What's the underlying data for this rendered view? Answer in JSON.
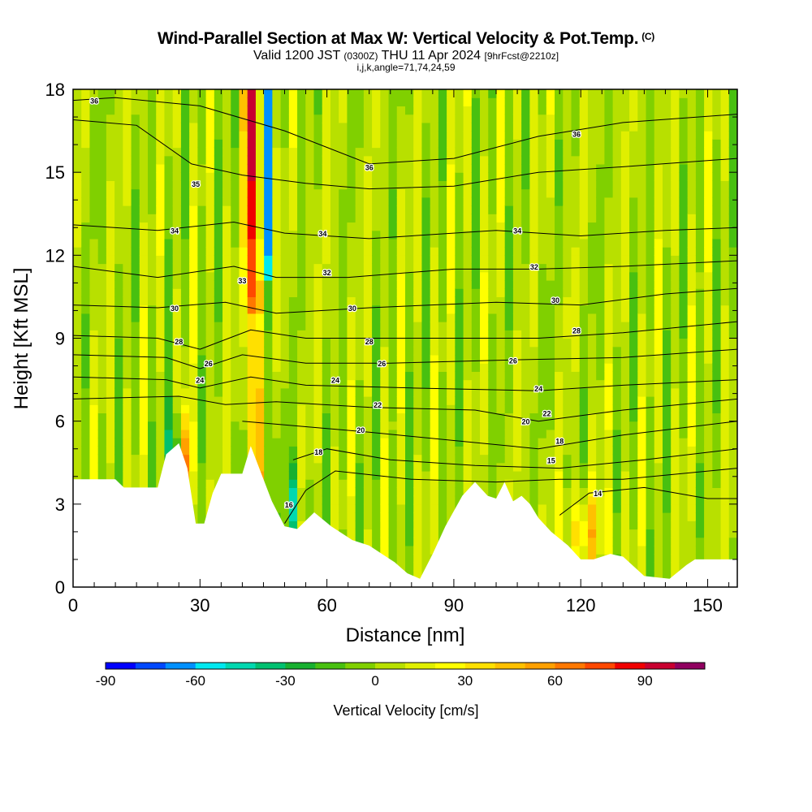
{
  "title": {
    "main": "Wind-Parallel Section at Max W: Vertical Velocity & Pot.Temp.",
    "copyright": "(C)",
    "valid_prefix": "Valid 1200 JST",
    "valid_utc": "(0300Z)",
    "valid_date": "THU 11 Apr 2024",
    "forecast": "[9hrFcst@2210z]",
    "indices": "i,j,k,angle=71,74,24,59"
  },
  "chart_data": {
    "type": "heatmap",
    "xlabel": "Distance [nm]",
    "ylabel": "Height [Kft MSL]",
    "xlim": [
      0,
      157
    ],
    "ylim": [
      0,
      18
    ],
    "x_ticks": [
      0,
      30,
      60,
      90,
      120,
      150
    ],
    "y_ticks": [
      0,
      3,
      6,
      9,
      12,
      15,
      18
    ],
    "x_tick_labels": [
      "0",
      "30",
      "60",
      "90",
      "120",
      "150"
    ],
    "y_tick_labels": [
      "0",
      "3",
      "6",
      "9",
      "12",
      "15",
      "18"
    ],
    "colorbar": {
      "label": "Vertical Velocity [cm/s]",
      "min": -90,
      "max": 110,
      "step": 10,
      "tick_values": [
        -90,
        -60,
        -30,
        0,
        30,
        60,
        90
      ],
      "tick_labels": [
        "-90",
        "-60",
        "-30",
        "0",
        "30",
        "60",
        "90"
      ],
      "colors": [
        "#0000ff",
        "#0048ff",
        "#0090ff",
        "#00e8f0",
        "#00d8b0",
        "#00c070",
        "#18b030",
        "#48c010",
        "#80d000",
        "#b8e000",
        "#e0ef00",
        "#ffff00",
        "#ffe000",
        "#ffc000",
        "#ffa000",
        "#ff7800",
        "#ff4800",
        "#f00000",
        "#c80030",
        "#900060"
      ]
    },
    "terrain_kft": [
      [
        0,
        3.9
      ],
      [
        10,
        3.9
      ],
      [
        12,
        3.6
      ],
      [
        20,
        3.6
      ],
      [
        22,
        4.8
      ],
      [
        25,
        5.2
      ],
      [
        27,
        4.3
      ],
      [
        29,
        2.3
      ],
      [
        31,
        2.3
      ],
      [
        33,
        3.4
      ],
      [
        35,
        4.1
      ],
      [
        40,
        4.1
      ],
      [
        42,
        5.1
      ],
      [
        47,
        3.1
      ],
      [
        50,
        2.2
      ],
      [
        53,
        2.1
      ],
      [
        57,
        2.7
      ],
      [
        61,
        2.2
      ],
      [
        66,
        1.7
      ],
      [
        70,
        1.5
      ],
      [
        73,
        1.2
      ],
      [
        76,
        0.9
      ],
      [
        79,
        0.5
      ],
      [
        82,
        0.3
      ],
      [
        85,
        1.2
      ],
      [
        88,
        2.2
      ],
      [
        92,
        3.3
      ],
      [
        95,
        3.8
      ],
      [
        98,
        3.3
      ],
      [
        100,
        3.2
      ],
      [
        102,
        3.8
      ],
      [
        104,
        3.1
      ],
      [
        106,
        3.3
      ],
      [
        108,
        3.0
      ],
      [
        110,
        2.5
      ],
      [
        113,
        2.0
      ],
      [
        117,
        1.5
      ],
      [
        120,
        1.0
      ],
      [
        123,
        1.0
      ],
      [
        127,
        1.2
      ],
      [
        130,
        1.1
      ],
      [
        135,
        0.4
      ],
      [
        141,
        0.3
      ],
      [
        145,
        0.8
      ],
      [
        147,
        1.0
      ],
      [
        157,
        1.0
      ]
    ],
    "theta_contours": [
      {
        "level": 36,
        "points": [
          [
            0,
            17.6
          ],
          [
            10,
            17.7
          ],
          [
            30,
            17.4
          ],
          [
            50,
            16.5
          ],
          [
            70,
            15.3
          ],
          [
            90,
            15.5
          ],
          [
            110,
            16.3
          ],
          [
            130,
            16.8
          ],
          [
            157,
            17.1
          ]
        ]
      },
      {
        "level": 35,
        "points": [
          [
            0,
            16.9
          ],
          [
            15,
            16.7
          ],
          [
            28,
            15.3
          ],
          [
            40,
            14.9
          ],
          [
            55,
            14.6
          ],
          [
            70,
            14.4
          ],
          [
            90,
            14.5
          ],
          [
            110,
            15.0
          ],
          [
            130,
            15.2
          ],
          [
            157,
            15.5
          ]
        ]
      },
      {
        "level": 34,
        "points": [
          [
            0,
            13.1
          ],
          [
            20,
            12.9
          ],
          [
            38,
            13.2
          ],
          [
            50,
            12.8
          ],
          [
            70,
            12.6
          ],
          [
            100,
            12.9
          ],
          [
            120,
            12.7
          ],
          [
            140,
            12.9
          ],
          [
            157,
            13.0
          ]
        ]
      },
      {
        "level": 32,
        "points": [
          [
            0,
            11.6
          ],
          [
            20,
            11.2
          ],
          [
            38,
            11.6
          ],
          [
            48,
            11.2
          ],
          [
            65,
            11.2
          ],
          [
            90,
            11.5
          ],
          [
            110,
            11.5
          ],
          [
            130,
            11.6
          ],
          [
            157,
            11.8
          ]
        ]
      },
      {
        "level": 30,
        "points": [
          [
            0,
            10.2
          ],
          [
            20,
            10.1
          ],
          [
            36,
            10.3
          ],
          [
            48,
            9.9
          ],
          [
            70,
            10.1
          ],
          [
            100,
            10.3
          ],
          [
            120,
            10.2
          ],
          [
            140,
            10.6
          ],
          [
            157,
            10.8
          ]
        ]
      },
      {
        "level": 28,
        "points": [
          [
            0,
            9.1
          ],
          [
            20,
            9.0
          ],
          [
            30,
            8.6
          ],
          [
            42,
            9.3
          ],
          [
            55,
            9.0
          ],
          [
            80,
            9.0
          ],
          [
            110,
            9.0
          ],
          [
            130,
            9.2
          ],
          [
            157,
            9.6
          ]
        ]
      },
      {
        "level": 26,
        "points": [
          [
            0,
            8.4
          ],
          [
            22,
            8.3
          ],
          [
            30,
            7.9
          ],
          [
            40,
            8.4
          ],
          [
            55,
            8.1
          ],
          [
            75,
            8.1
          ],
          [
            100,
            8.2
          ],
          [
            130,
            8.3
          ],
          [
            157,
            8.6
          ]
        ]
      },
      {
        "level": 24,
        "points": [
          [
            0,
            7.6
          ],
          [
            22,
            7.5
          ],
          [
            30,
            7.2
          ],
          [
            42,
            7.6
          ],
          [
            55,
            7.3
          ],
          [
            80,
            7.2
          ],
          [
            110,
            7.1
          ],
          [
            130,
            7.3
          ],
          [
            157,
            7.5
          ]
        ]
      },
      {
        "level": 22,
        "points": [
          [
            0,
            6.8
          ],
          [
            25,
            6.9
          ],
          [
            36,
            6.6
          ],
          [
            48,
            6.7
          ],
          [
            70,
            6.5
          ],
          [
            95,
            6.4
          ],
          [
            110,
            6.0
          ],
          [
            130,
            6.4
          ],
          [
            157,
            6.8
          ]
        ]
      },
      {
        "level": 20,
        "points": [
          [
            40,
            6.0
          ],
          [
            55,
            5.8
          ],
          [
            70,
            5.6
          ],
          [
            90,
            5.3
          ],
          [
            110,
            5.0
          ],
          [
            130,
            5.5
          ],
          [
            157,
            6.0
          ]
        ]
      },
      {
        "level": 18,
        "points": [
          [
            52,
            4.6
          ],
          [
            60,
            5.0
          ],
          [
            75,
            4.6
          ],
          [
            95,
            4.4
          ],
          [
            115,
            4.3
          ],
          [
            135,
            4.6
          ],
          [
            157,
            5.0
          ]
        ]
      },
      {
        "level": 16,
        "points": [
          [
            50,
            2.3
          ],
          [
            55,
            3.5
          ],
          [
            62,
            4.2
          ],
          [
            80,
            3.9
          ],
          [
            100,
            3.8
          ],
          [
            115,
            3.9
          ],
          [
            130,
            3.9
          ],
          [
            157,
            4.3
          ]
        ]
      },
      {
        "level": 14,
        "points": [
          [
            115,
            2.6
          ],
          [
            122,
            3.4
          ],
          [
            135,
            3.6
          ],
          [
            150,
            3.2
          ],
          [
            157,
            3.2
          ]
        ]
      }
    ],
    "theta_labels": [
      {
        "text": "36",
        "x": 5,
        "y": 17.6
      },
      {
        "text": "36",
        "x": 70,
        "y": 15.2
      },
      {
        "text": "36",
        "x": 119,
        "y": 16.4
      },
      {
        "text": "35",
        "x": 29,
        "y": 14.6
      },
      {
        "text": "34",
        "x": 24,
        "y": 12.9
      },
      {
        "text": "34",
        "x": 59,
        "y": 12.8
      },
      {
        "text": "34",
        "x": 105,
        "y": 12.9
      },
      {
        "text": "33",
        "x": 40,
        "y": 11.1
      },
      {
        "text": "32",
        "x": 60,
        "y": 11.4
      },
      {
        "text": "32",
        "x": 109,
        "y": 11.6
      },
      {
        "text": "30",
        "x": 24,
        "y": 10.1
      },
      {
        "text": "30",
        "x": 66,
        "y": 10.1
      },
      {
        "text": "30",
        "x": 114,
        "y": 10.4
      },
      {
        "text": "28",
        "x": 25,
        "y": 8.9
      },
      {
        "text": "28",
        "x": 70,
        "y": 8.9
      },
      {
        "text": "28",
        "x": 119,
        "y": 9.3
      },
      {
        "text": "26",
        "x": 32,
        "y": 8.1
      },
      {
        "text": "26",
        "x": 73,
        "y": 8.1
      },
      {
        "text": "26",
        "x": 104,
        "y": 8.2
      },
      {
        "text": "24",
        "x": 30,
        "y": 7.5
      },
      {
        "text": "24",
        "x": 62,
        "y": 7.5
      },
      {
        "text": "24",
        "x": 110,
        "y": 7.2
      },
      {
        "text": "22",
        "x": 72,
        "y": 6.6
      },
      {
        "text": "22",
        "x": 112,
        "y": 6.3
      },
      {
        "text": "20",
        "x": 68,
        "y": 5.7
      },
      {
        "text": "20",
        "x": 107,
        "y": 6.0
      },
      {
        "text": "18",
        "x": 58,
        "y": 4.9
      },
      {
        "text": "18",
        "x": 115,
        "y": 5.3
      },
      {
        "text": "16",
        "x": 51,
        "y": 3.0
      },
      {
        "text": "15",
        "x": 113,
        "y": 4.6
      },
      {
        "text": "14",
        "x": 124,
        "y": 3.4
      }
    ]
  }
}
